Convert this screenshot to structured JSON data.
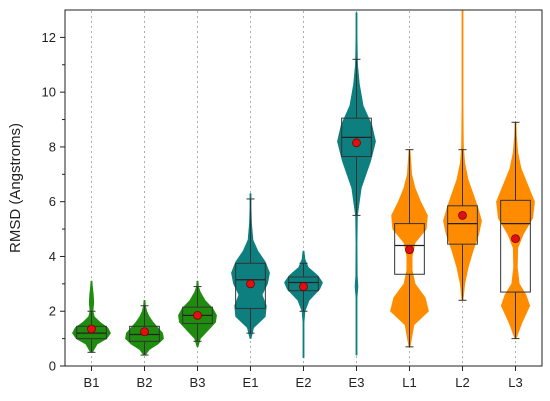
{
  "chart_data": {
    "type": "violin",
    "title": "",
    "xlabel": "",
    "ylabel": "RMSD (Angstroms)",
    "ylim": [
      0,
      13
    ],
    "yticks": [
      0,
      2,
      4,
      6,
      8,
      10,
      12
    ],
    "grid": false,
    "categories": [
      "B1",
      "B2",
      "B3",
      "E1",
      "E2",
      "E3",
      "L1",
      "L2",
      "L3"
    ],
    "groups": [
      {
        "label": "B1",
        "color": "#1f8c0f",
        "min": 0.5,
        "max": 3.1,
        "q1": 1.0,
        "median": 1.2,
        "q3": 1.45,
        "mean": 1.35,
        "whisker_low": 0.5,
        "whisker_high": 2.0,
        "density": [
          [
            0.5,
            0.05
          ],
          [
            0.8,
            0.3
          ],
          [
            1.0,
            0.8
          ],
          [
            1.2,
            1.0
          ],
          [
            1.4,
            0.85
          ],
          [
            1.6,
            0.45
          ],
          [
            1.8,
            0.15
          ],
          [
            2.0,
            0.08
          ],
          [
            2.3,
            0.12
          ],
          [
            2.6,
            0.1
          ],
          [
            2.9,
            0.05
          ],
          [
            3.1,
            0.02
          ]
        ]
      },
      {
        "label": "B2",
        "color": "#1f8c0f",
        "min": 0.4,
        "max": 2.4,
        "q1": 0.9,
        "median": 1.15,
        "q3": 1.45,
        "mean": 1.25,
        "whisker_low": 0.4,
        "whisker_high": 2.2,
        "density": [
          [
            0.4,
            0.05
          ],
          [
            0.6,
            0.25
          ],
          [
            0.8,
            0.7
          ],
          [
            1.0,
            1.0
          ],
          [
            1.2,
            0.95
          ],
          [
            1.4,
            0.7
          ],
          [
            1.6,
            0.45
          ],
          [
            1.8,
            0.25
          ],
          [
            2.0,
            0.12
          ],
          [
            2.2,
            0.05
          ],
          [
            2.4,
            0.02
          ]
        ]
      },
      {
        "label": "B3",
        "color": "#1f8c0f",
        "min": 0.7,
        "max": 3.1,
        "q1": 1.55,
        "median": 1.85,
        "q3": 2.15,
        "mean": 1.85,
        "whisker_low": 0.9,
        "whisker_high": 2.9,
        "density": [
          [
            0.7,
            0.03
          ],
          [
            1.0,
            0.15
          ],
          [
            1.3,
            0.55
          ],
          [
            1.6,
            0.95
          ],
          [
            1.85,
            1.0
          ],
          [
            2.1,
            0.8
          ],
          [
            2.4,
            0.4
          ],
          [
            2.7,
            0.15
          ],
          [
            2.9,
            0.05
          ],
          [
            3.1,
            0.02
          ]
        ]
      },
      {
        "label": "E1",
        "color": "#0d7f7f",
        "min": 1.0,
        "max": 6.3,
        "q1": 2.1,
        "median": 3.15,
        "q3": 3.75,
        "mean": 3.0,
        "whisker_low": 1.2,
        "whisker_high": 6.1,
        "density": [
          [
            1.0,
            0.03
          ],
          [
            1.4,
            0.15
          ],
          [
            1.8,
            0.7
          ],
          [
            2.2,
            0.75
          ],
          [
            2.6,
            0.55
          ],
          [
            3.0,
            0.8
          ],
          [
            3.4,
            0.9
          ],
          [
            3.8,
            0.7
          ],
          [
            4.2,
            0.35
          ],
          [
            4.6,
            0.12
          ],
          [
            5.2,
            0.05
          ],
          [
            5.8,
            0.03
          ],
          [
            6.3,
            0.01
          ]
        ]
      },
      {
        "label": "E2",
        "color": "#0d7f7f",
        "min": 0.3,
        "max": 4.2,
        "q1": 2.75,
        "median": 3.05,
        "q3": 3.25,
        "mean": 2.9,
        "whisker_low": 2.0,
        "whisker_high": 3.75,
        "density": [
          [
            0.3,
            0.01
          ],
          [
            1.0,
            0.02
          ],
          [
            1.6,
            0.03
          ],
          [
            2.0,
            0.08
          ],
          [
            2.4,
            0.3
          ],
          [
            2.8,
            0.85
          ],
          [
            3.05,
            1.0
          ],
          [
            3.3,
            0.75
          ],
          [
            3.6,
            0.25
          ],
          [
            3.9,
            0.08
          ],
          [
            4.2,
            0.02
          ]
        ]
      },
      {
        "label": "E3",
        "color": "#0d7f7f",
        "min": 0.4,
        "max": 12.9,
        "q1": 7.65,
        "median": 8.35,
        "q3": 9.05,
        "mean": 8.15,
        "whisker_low": 5.5,
        "whisker_high": 11.2,
        "density": [
          [
            0.4,
            0.01
          ],
          [
            2.5,
            0.03
          ],
          [
            2.9,
            0.08
          ],
          [
            3.3,
            0.04
          ],
          [
            4.5,
            0.03
          ],
          [
            5.5,
            0.05
          ],
          [
            6.5,
            0.25
          ],
          [
            7.5,
            0.75
          ],
          [
            8.2,
            1.0
          ],
          [
            8.8,
            0.8
          ],
          [
            9.5,
            0.35
          ],
          [
            10.3,
            0.15
          ],
          [
            11.0,
            0.06
          ],
          [
            12.0,
            0.02
          ],
          [
            12.9,
            0.01
          ]
        ]
      },
      {
        "label": "L1",
        "color": "#ff8c00",
        "min": 0.7,
        "max": 7.9,
        "q1": 3.35,
        "median": 4.4,
        "q3": 5.2,
        "mean": 4.25,
        "whisker_low": 0.7,
        "whisker_high": 7.9,
        "density": [
          [
            0.7,
            0.02
          ],
          [
            1.5,
            0.2
          ],
          [
            2.0,
            0.85
          ],
          [
            2.5,
            0.7
          ],
          [
            3.0,
            0.25
          ],
          [
            3.5,
            0.12
          ],
          [
            4.0,
            0.12
          ],
          [
            4.5,
            0.25
          ],
          [
            5.0,
            0.75
          ],
          [
            5.5,
            0.8
          ],
          [
            6.0,
            0.5
          ],
          [
            6.5,
            0.25
          ],
          [
            7.0,
            0.1
          ],
          [
            7.9,
            0.02
          ]
        ]
      },
      {
        "label": "L2",
        "color": "#ff8c00",
        "min": 2.4,
        "max": 13.0,
        "q1": 4.45,
        "median": 5.2,
        "q3": 5.85,
        "mean": 5.5,
        "whisker_low": 2.4,
        "whisker_high": 7.9,
        "density": [
          [
            2.4,
            0.03
          ],
          [
            3.0,
            0.12
          ],
          [
            3.6,
            0.3
          ],
          [
            4.2,
            0.55
          ],
          [
            4.8,
            0.85
          ],
          [
            5.3,
            1.0
          ],
          [
            5.8,
            0.8
          ],
          [
            6.3,
            0.55
          ],
          [
            6.8,
            0.3
          ],
          [
            7.4,
            0.12
          ],
          [
            8.0,
            0.05
          ],
          [
            9.5,
            0.02
          ],
          [
            11.0,
            0.01
          ],
          [
            13.0,
            0.005
          ]
        ]
      },
      {
        "label": "L3",
        "color": "#ff8c00",
        "min": 1.0,
        "max": 8.9,
        "q1": 2.7,
        "median": 5.2,
        "q3": 6.05,
        "mean": 4.65,
        "whisker_low": 1.0,
        "whisker_high": 8.9,
        "density": [
          [
            1.0,
            0.03
          ],
          [
            1.6,
            0.35
          ],
          [
            2.2,
            0.75
          ],
          [
            2.6,
            0.55
          ],
          [
            3.0,
            0.2
          ],
          [
            3.6,
            0.1
          ],
          [
            4.3,
            0.12
          ],
          [
            4.8,
            0.4
          ],
          [
            5.4,
            0.9
          ],
          [
            6.0,
            1.0
          ],
          [
            6.6,
            0.65
          ],
          [
            7.2,
            0.3
          ],
          [
            7.8,
            0.12
          ],
          [
            8.4,
            0.05
          ],
          [
            8.9,
            0.02
          ]
        ]
      }
    ]
  }
}
